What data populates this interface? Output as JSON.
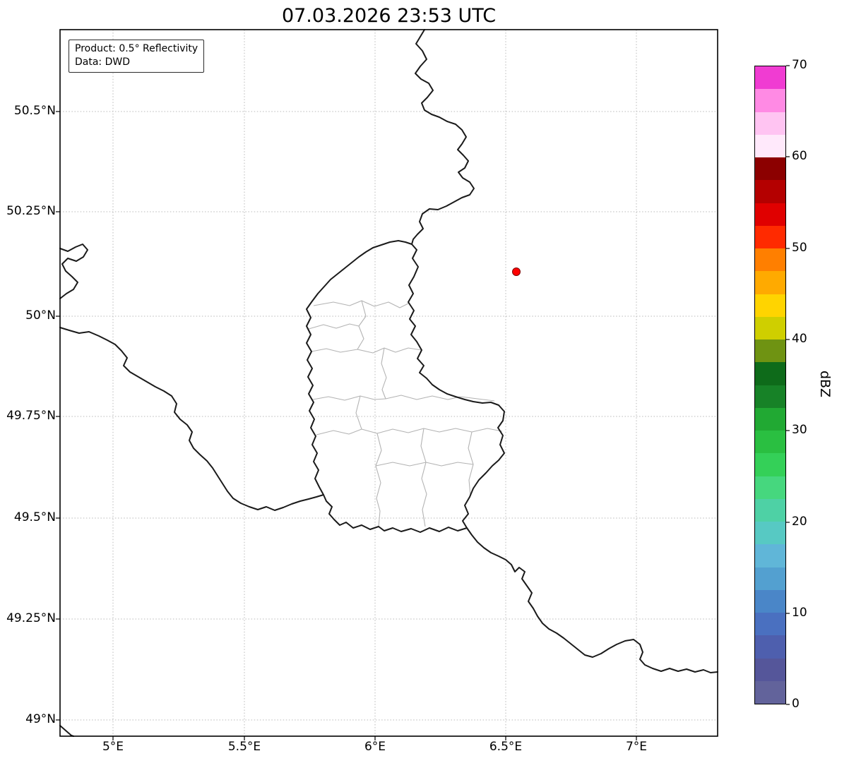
{
  "title": "07.03.2026 23:53 UTC",
  "legend": {
    "line1": "Product: 0.5° Reflectivity",
    "line2": "Data: DWD"
  },
  "map": {
    "yticks": [
      "50.5°N",
      "50.25°N",
      "50°N",
      "49.75°N",
      "49.5°N",
      "49.25°N",
      "49°N"
    ],
    "xticks": [
      "5°E",
      "5.5°E",
      "6°E",
      "6.5°E",
      "7°E"
    ],
    "marker": {
      "name": "radar-site",
      "lon": 6.55,
      "lat": 50.11,
      "color": "#ff0000",
      "edge_color": "#7f0000"
    },
    "border_color": "#1a1a1a",
    "district_border_color": "#b3b3b3",
    "grid_color": "#b8b8b8"
  },
  "colorbar": {
    "label": "dBZ",
    "ticks": [
      "0",
      "10",
      "20",
      "30",
      "40",
      "50",
      "60",
      "70"
    ],
    "min": 0,
    "max": 70,
    "step": 2.5,
    "stops_bottom_to_top": [
      "#62639b",
      "#55569a",
      "#4e5fae",
      "#4a70c0",
      "#4a86c8",
      "#53a0d0",
      "#60b6d8",
      "#57c9c3",
      "#4ed1a5",
      "#46d77e",
      "#34d058",
      "#2abf41",
      "#21a933",
      "#178227",
      "#0e6b1a",
      "#6f9312",
      "#cfcf00",
      "#ffd400",
      "#ffaa00",
      "#ff7f00",
      "#ff2a00",
      "#e00000",
      "#b40000",
      "#8c0000",
      "#ffe9fb",
      "#ffc4f2",
      "#ff8ae4",
      "#f03cd2"
    ]
  }
}
